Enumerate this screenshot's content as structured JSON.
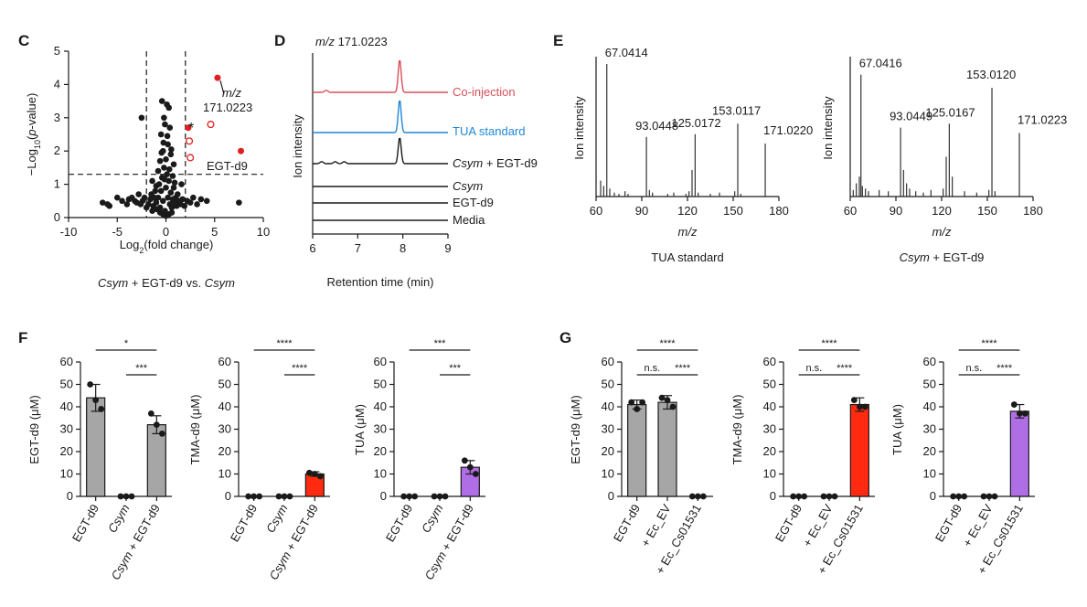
{
  "colors": {
    "black": "#1a1a1a",
    "red": "#e02020",
    "pinkRed": "#d9505a",
    "blue": "#1f87d6",
    "gray": "#a6a6a6",
    "purple": "#b06ee6",
    "orangeRed": "#ff2a10"
  },
  "panels": {
    "C": "C",
    "D": "D",
    "E": "E",
    "F": "F",
    "G": "G"
  },
  "chart_data": [
    {
      "id": "C",
      "type": "scatter",
      "xlabel_main": "Log",
      "xlabel_sub": "2",
      "xlabel_rest": "(fold change)",
      "ylabel_a": "−Log",
      "ylabel_sub": "10",
      "ylabel_b": "(",
      "ylabel_p": "p",
      "ylabel_c": "-value)",
      "xlim": [
        -10,
        10
      ],
      "ylim": [
        0,
        5
      ],
      "xticks": [
        "-10",
        "-5",
        "0",
        "5",
        "10"
      ],
      "yticks": [
        "0",
        "1",
        "2",
        "3",
        "4",
        "5"
      ],
      "thresholds": {
        "x": [
          -2,
          2
        ],
        "y": 1.3
      },
      "caption_italic1": "Csym",
      "caption_mid": " + EGT-d9 vs. ",
      "caption_italic2": "Csym",
      "annotations": {
        "mz_italic": "m/z",
        "mz_value": "171.0223",
        "star": "*",
        "egt": "EGT-d9"
      },
      "highlight_filled": [
        [
          5.3,
          4.2
        ],
        [
          2.3,
          2.7
        ],
        [
          7.7,
          2.0
        ]
      ],
      "highlight_open": [
        [
          4.6,
          2.8
        ],
        [
          2.4,
          2.3
        ],
        [
          2.5,
          1.8
        ]
      ],
      "points": [
        [
          -6.5,
          0.45
        ],
        [
          -6,
          0.4
        ],
        [
          -5.8,
          0.35
        ],
        [
          -5,
          0.6
        ],
        [
          -4.5,
          0.5
        ],
        [
          -4,
          0.4
        ],
        [
          -3.8,
          0.55
        ],
        [
          -3.5,
          0.6
        ],
        [
          -3.2,
          0.5
        ],
        [
          -3,
          0.45
        ],
        [
          -2.8,
          0.7
        ],
        [
          -2.6,
          0.4
        ],
        [
          -2.4,
          0.5
        ],
        [
          -2.2,
          0.6
        ],
        [
          -2,
          0.3
        ],
        [
          -1.8,
          0.4
        ],
        [
          -1.6,
          0.55
        ],
        [
          -1.5,
          0.7
        ],
        [
          -1.4,
          0.2
        ],
        [
          -1.3,
          0.35
        ],
        [
          -1.2,
          0.6
        ],
        [
          -1.1,
          0.8
        ],
        [
          -1.0,
          0.45
        ],
        [
          -0.9,
          0.25
        ],
        [
          -0.8,
          0.6
        ],
        [
          -0.7,
          1.0
        ],
        [
          -0.6,
          0.3
        ],
        [
          -0.5,
          0.8
        ],
        [
          -0.4,
          1.2
        ],
        [
          -0.3,
          0.5
        ],
        [
          -0.2,
          1.5
        ],
        [
          -0.1,
          0.2
        ],
        [
          0.0,
          0.9
        ],
        [
          0.1,
          1.3
        ],
        [
          0.2,
          0.6
        ],
        [
          0.3,
          1.1
        ],
        [
          0.4,
          0.4
        ],
        [
          0.5,
          0.75
        ],
        [
          0.6,
          0.3
        ],
        [
          0.7,
          0.55
        ],
        [
          0.8,
          0.9
        ],
        [
          0.9,
          0.45
        ],
        [
          1.0,
          0.6
        ],
        [
          1.1,
          0.35
        ],
        [
          1.2,
          0.7
        ],
        [
          1.3,
          0.5
        ],
        [
          1.5,
          0.4
        ],
        [
          1.7,
          0.55
        ],
        [
          1.9,
          0.35
        ],
        [
          2.2,
          0.5
        ],
        [
          2.5,
          0.45
        ],
        [
          2.8,
          0.6
        ],
        [
          3.2,
          0.4
        ],
        [
          3.6,
          0.55
        ],
        [
          4.2,
          0.5
        ],
        [
          7.5,
          0.45
        ],
        [
          -0.3,
          2.0
        ],
        [
          0.2,
          2.2
        ],
        [
          -0.5,
          2.5
        ],
        [
          0.4,
          2.7
        ],
        [
          -0.2,
          3.0
        ],
        [
          0.3,
          3.3
        ],
        [
          -0.4,
          3.5
        ],
        [
          0.1,
          3.4
        ],
        [
          -0.1,
          2.8
        ],
        [
          0.5,
          1.9
        ],
        [
          -0.6,
          1.7
        ],
        [
          0.8,
          1.6
        ],
        [
          -0.8,
          1.4
        ],
        [
          0.7,
          1.25
        ],
        [
          -2.5,
          3.0
        ],
        [
          1.6,
          1.0
        ],
        [
          -1.4,
          1.1
        ],
        [
          0.0,
          0.05
        ],
        [
          0.3,
          0.1
        ],
        [
          -0.3,
          0.1
        ],
        [
          0.6,
          0.15
        ],
        [
          -0.6,
          0.15
        ],
        [
          0.0,
          1.75
        ],
        [
          0.15,
          2.45
        ],
        [
          -0.25,
          2.25
        ],
        [
          0.55,
          2.05
        ],
        [
          -0.45,
          1.95
        ],
        [
          0.35,
          1.45
        ],
        [
          -0.15,
          1.15
        ],
        [
          0.9,
          1.05
        ],
        [
          -1.0,
          0.95
        ]
      ]
    },
    {
      "id": "D",
      "type": "line",
      "title_italic": "m/z",
      "title_value": "171.0223",
      "ylabel": "Ion intensity",
      "xlabel": "Retention time (min)",
      "xlim": [
        6,
        9
      ],
      "xticks": [
        "6",
        "7",
        "8",
        "9"
      ],
      "traces": [
        {
          "label": "Co-injection",
          "color": "#d9505a",
          "peak_rt": 7.93,
          "peak_height": 1.0,
          "extra_peaks": [
            6.3
          ],
          "italic": ""
        },
        {
          "label": "TUA standard",
          "color": "#1f87d6",
          "peak_rt": 7.93,
          "peak_height": 1.0,
          "extra_peaks": [],
          "italic": ""
        },
        {
          "label": " + EGT-d9",
          "color": "#1a1a1a",
          "peak_rt": 7.93,
          "peak_height": 0.8,
          "extra_peaks": [
            6.2,
            6.5,
            6.7
          ],
          "italic": "Csym"
        },
        {
          "label": "",
          "color": "#1a1a1a",
          "peak_rt": null,
          "peak_height": 0,
          "extra_peaks": [],
          "italic": "Csym"
        },
        {
          "label": "EGT-d9",
          "color": "#1a1a1a",
          "peak_rt": null,
          "peak_height": 0,
          "extra_peaks": [],
          "italic": ""
        },
        {
          "label": "Media",
          "color": "#1a1a1a",
          "peak_rt": null,
          "peak_height": 0,
          "extra_peaks": [],
          "italic": ""
        }
      ]
    },
    {
      "id": "E1",
      "type": "bar",
      "ylabel": "Ion intensity",
      "xlabel": "m/z",
      "caption": "TUA standard",
      "caption_italic": "",
      "xlim": [
        60,
        180
      ],
      "xticks": [
        "60",
        "90",
        "120",
        "150",
        "180"
      ],
      "peaks": [
        [
          67.0414,
          1.0
        ],
        [
          93.0448,
          0.45
        ],
        [
          125.0172,
          0.47
        ],
        [
          153.0117,
          0.55
        ],
        [
          171.022,
          0.4
        ],
        [
          63,
          0.12
        ],
        [
          65,
          0.08
        ],
        [
          69,
          0.06
        ],
        [
          72,
          0.03
        ],
        [
          75,
          0.02
        ],
        [
          79,
          0.04
        ],
        [
          81,
          0.02
        ],
        [
          95,
          0.05
        ],
        [
          97,
          0.03
        ],
        [
          107,
          0.02
        ],
        [
          111,
          0.03
        ],
        [
          119,
          0.02
        ],
        [
          121,
          0.04
        ],
        [
          123,
          0.2
        ],
        [
          127,
          0.03
        ],
        [
          135,
          0.02
        ],
        [
          141,
          0.03
        ],
        [
          151,
          0.04
        ],
        [
          155,
          0.02
        ]
      ],
      "labels": [
        {
          "mz": 67.0414,
          "text": "67.0414"
        },
        {
          "mz": 93.0448,
          "text": "93.0448"
        },
        {
          "mz": 125.0172,
          "text": "125.0172"
        },
        {
          "mz": 153.0117,
          "text": "153.0117"
        },
        {
          "mz": 171.022,
          "text": "171.0220"
        }
      ]
    },
    {
      "id": "E2",
      "type": "bar",
      "ylabel": "Ion intensity",
      "xlabel": "m/z",
      "caption": " + EGT-d9",
      "caption_italic": "Csym",
      "xlim": [
        60,
        180
      ],
      "xticks": [
        "60",
        "90",
        "120",
        "150",
        "180"
      ],
      "peaks": [
        [
          67.0416,
          0.92
        ],
        [
          93.0449,
          0.52
        ],
        [
          125.0167,
          0.55
        ],
        [
          153.012,
          0.82
        ],
        [
          171.0223,
          0.48
        ],
        [
          62,
          0.05
        ],
        [
          64,
          0.1
        ],
        [
          66,
          0.15
        ],
        [
          68,
          0.08
        ],
        [
          70,
          0.06
        ],
        [
          72,
          0.04
        ],
        [
          79,
          0.05
        ],
        [
          85,
          0.04
        ],
        [
          95,
          0.2
        ],
        [
          97,
          0.1
        ],
        [
          99,
          0.06
        ],
        [
          103,
          0.04
        ],
        [
          108,
          0.03
        ],
        [
          113,
          0.05
        ],
        [
          121,
          0.06
        ],
        [
          123,
          0.3
        ],
        [
          127,
          0.15
        ],
        [
          135,
          0.04
        ],
        [
          143,
          0.03
        ],
        [
          151,
          0.05
        ],
        [
          155,
          0.04
        ]
      ],
      "labels": [
        {
          "mz": 67.0416,
          "text": "67.0416"
        },
        {
          "mz": 93.0449,
          "text": "93.0449"
        },
        {
          "mz": 125.0167,
          "text": "125.0167"
        },
        {
          "mz": 153.012,
          "text": "153.0120"
        },
        {
          "mz": 171.0223,
          "text": "171.0223"
        }
      ]
    },
    {
      "id": "F1",
      "type": "bar",
      "ylabel": "EGT-d9 (μM)",
      "ylim": [
        0,
        60
      ],
      "yticks": [
        "0",
        "10",
        "20",
        "30",
        "40",
        "50",
        "60"
      ],
      "categories": [
        {
          "main": "EGT-d9",
          "italic": ""
        },
        {
          "main": "",
          "italic": "Csym"
        },
        {
          "main": " + EGT-d9",
          "italic": "Csym"
        }
      ],
      "values": [
        44,
        0,
        32
      ],
      "errors": [
        6,
        0,
        4
      ],
      "reps": [
        [
          50,
          43,
          39
        ],
        [
          0,
          0,
          0
        ],
        [
          37,
          32,
          28
        ]
      ],
      "colors": [
        "#a6a6a6",
        "#a6a6a6",
        "#a6a6a6"
      ],
      "sig": [
        {
          "from": 0,
          "to": 2,
          "text": "*",
          "level": 2
        },
        {
          "from": 1,
          "to": 2,
          "text": "***",
          "level": 1
        }
      ]
    },
    {
      "id": "F2",
      "type": "bar",
      "ylabel": "TMA-d9 (μM)",
      "ylim": [
        0,
        60
      ],
      "yticks": [
        "0",
        "10",
        "20",
        "30",
        "40",
        "50",
        "60"
      ],
      "categories": [
        {
          "main": "EGT-d9",
          "italic": ""
        },
        {
          "main": "",
          "italic": "Csym"
        },
        {
          "main": " + EGT-d9",
          "italic": "Csym"
        }
      ],
      "values": [
        0,
        0,
        10
      ],
      "errors": [
        0,
        0,
        1
      ],
      "reps": [
        [
          0,
          0,
          0
        ],
        [
          0,
          0,
          0
        ],
        [
          10.5,
          10,
          9
        ]
      ],
      "colors": [
        "#a6a6a6",
        "#a6a6a6",
        "#ff2a10"
      ],
      "sig": [
        {
          "from": 0,
          "to": 2,
          "text": "****",
          "level": 2
        },
        {
          "from": 1,
          "to": 2,
          "text": "****",
          "level": 1
        }
      ]
    },
    {
      "id": "F3",
      "type": "bar",
      "ylabel": "TUA (μM)",
      "ylim": [
        0,
        60
      ],
      "yticks": [
        "0",
        "10",
        "20",
        "30",
        "40",
        "50",
        "60"
      ],
      "categories": [
        {
          "main": "EGT-d9",
          "italic": ""
        },
        {
          "main": "",
          "italic": "Csym"
        },
        {
          "main": " + EGT-d9",
          "italic": "Csym"
        }
      ],
      "values": [
        0,
        0,
        13
      ],
      "errors": [
        0,
        0,
        3
      ],
      "reps": [
        [
          0,
          0,
          0
        ],
        [
          0,
          0,
          0
        ],
        [
          16,
          13,
          10
        ]
      ],
      "colors": [
        "#a6a6a6",
        "#a6a6a6",
        "#b06ee6"
      ],
      "sig": [
        {
          "from": 0,
          "to": 2,
          "text": "***",
          "level": 2
        },
        {
          "from": 1,
          "to": 2,
          "text": "***",
          "level": 1
        }
      ]
    },
    {
      "id": "G1",
      "type": "bar",
      "ylabel": "EGT-d9 (μM)",
      "ylim": [
        0,
        60
      ],
      "yticks": [
        "0",
        "10",
        "20",
        "30",
        "40",
        "50",
        "60"
      ],
      "categories": [
        {
          "main": "EGT-d9",
          "italic": ""
        },
        {
          "main": "+ Ec_EV",
          "italic": ""
        },
        {
          "main": "+ Ec_Cs01531",
          "italic": ""
        }
      ],
      "values": [
        41,
        42,
        0
      ],
      "errors": [
        2,
        3,
        0
      ],
      "reps": [
        [
          42,
          39,
          42
        ],
        [
          44,
          43,
          40
        ],
        [
          0,
          0,
          0
        ]
      ],
      "colors": [
        "#a6a6a6",
        "#a6a6a6",
        "#a6a6a6"
      ],
      "sig": [
        {
          "from": 0,
          "to": 2,
          "text": "****",
          "level": 2
        },
        {
          "from": 0,
          "to": 1,
          "text": "n.s.",
          "level": 1
        },
        {
          "from": 1,
          "to": 2,
          "text": "****",
          "level": 1
        }
      ]
    },
    {
      "id": "G2",
      "type": "bar",
      "ylabel": "TMA-d9 (μM)",
      "ylim": [
        0,
        60
      ],
      "yticks": [
        "0",
        "10",
        "20",
        "30",
        "40",
        "50",
        "60"
      ],
      "categories": [
        {
          "main": "EGT-d9",
          "italic": ""
        },
        {
          "main": "+ Ec_EV",
          "italic": ""
        },
        {
          "main": "+ Ec_Cs01531",
          "italic": ""
        }
      ],
      "values": [
        0,
        0,
        41
      ],
      "errors": [
        0,
        0,
        3
      ],
      "reps": [
        [
          0,
          0,
          0
        ],
        [
          0,
          0,
          0
        ],
        [
          43,
          40,
          40
        ]
      ],
      "colors": [
        "#a6a6a6",
        "#a6a6a6",
        "#ff2a10"
      ],
      "sig": [
        {
          "from": 0,
          "to": 2,
          "text": "****",
          "level": 2
        },
        {
          "from": 0,
          "to": 1,
          "text": "n.s.",
          "level": 1
        },
        {
          "from": 1,
          "to": 2,
          "text": "****",
          "level": 1
        }
      ]
    },
    {
      "id": "G3",
      "type": "bar",
      "ylabel": "TUA (μM)",
      "ylim": [
        0,
        60
      ],
      "yticks": [
        "0",
        "10",
        "20",
        "30",
        "40",
        "50",
        "60"
      ],
      "categories": [
        {
          "main": "EGT-d9",
          "italic": ""
        },
        {
          "main": "+ Ec_EV",
          "italic": ""
        },
        {
          "main": "+ Ec_Cs01531",
          "italic": ""
        }
      ],
      "values": [
        0,
        0,
        38
      ],
      "errors": [
        0,
        0,
        3
      ],
      "reps": [
        [
          0,
          0,
          0
        ],
        [
          0,
          0,
          0
        ],
        [
          41,
          37,
          37
        ]
      ],
      "colors": [
        "#a6a6a6",
        "#a6a6a6",
        "#b06ee6"
      ],
      "sig": [
        {
          "from": 0,
          "to": 2,
          "text": "****",
          "level": 2
        },
        {
          "from": 0,
          "to": 1,
          "text": "n.s.",
          "level": 1
        },
        {
          "from": 1,
          "to": 2,
          "text": "****",
          "level": 1
        }
      ]
    }
  ]
}
